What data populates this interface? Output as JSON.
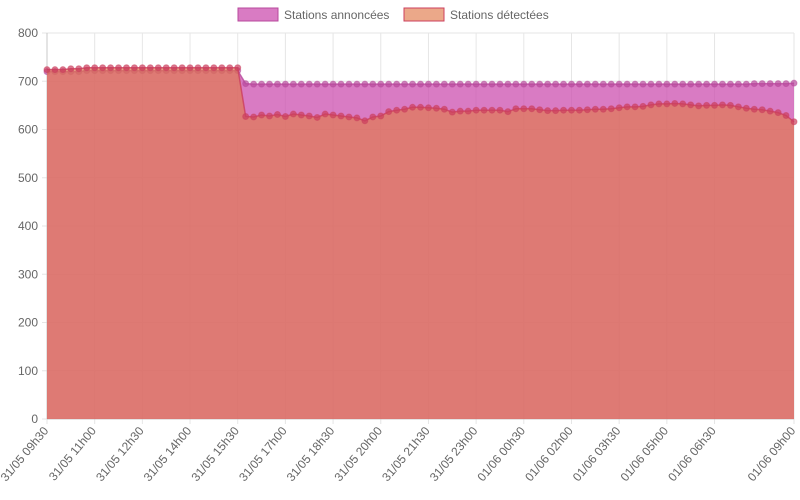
{
  "chart_data": {
    "type": "area",
    "legend_position": "top-center",
    "grid": true,
    "ylim": [
      0,
      800
    ],
    "y_ticks": [
      0,
      100,
      200,
      300,
      400,
      500,
      600,
      700,
      800
    ],
    "x_tick_labels": [
      "31/05 09h30",
      "31/05 11h00",
      "31/05 12h30",
      "31/05 14h00",
      "31/05 15h30",
      "31/05 17h00",
      "31/05 18h30",
      "31/05 20h00",
      "31/05 21h30",
      "31/05 23h00",
      "01/06 00h30",
      "01/06 02h00",
      "01/06 03h30",
      "01/06 05h00",
      "01/06 06h30",
      "01/06 09h00"
    ],
    "x_tick_indices": [
      0,
      6,
      12,
      18,
      24,
      30,
      36,
      42,
      48,
      54,
      60,
      66,
      72,
      78,
      84,
      94
    ],
    "series": [
      {
        "name": "Stations annoncées",
        "fill_color": "#cc4faf",
        "fill_opacity": 0.75,
        "point_color": "#b84a9c",
        "values": [
          720,
          720,
          720,
          720,
          720,
          722,
          722,
          722,
          722,
          722,
          722,
          722,
          722,
          722,
          722,
          722,
          722,
          722,
          722,
          722,
          722,
          722,
          722,
          722,
          722,
          695,
          694,
          694,
          694,
          694,
          694,
          694,
          694,
          694,
          694,
          694,
          694,
          694,
          694,
          694,
          694,
          694,
          694,
          694,
          694,
          694,
          694,
          694,
          694,
          694,
          694,
          694,
          694,
          694,
          694,
          694,
          694,
          694,
          694,
          694,
          694,
          694,
          694,
          694,
          694,
          694,
          694,
          694,
          694,
          694,
          694,
          694,
          694,
          694,
          694,
          694,
          694,
          694,
          694,
          694,
          694,
          694,
          694,
          694,
          694,
          694,
          694,
          694,
          694,
          695,
          695,
          695,
          695,
          695,
          696
        ]
      },
      {
        "name": "Stations détectées",
        "fill_color": "#e07a4a",
        "fill_opacity": 0.65,
        "point_color": "#cc3f5e",
        "values": [
          724,
          724,
          724,
          726,
          726,
          728,
          728,
          728,
          728,
          728,
          728,
          728,
          728,
          728,
          728,
          728,
          728,
          728,
          728,
          728,
          728,
          728,
          728,
          728,
          728,
          627,
          626,
          630,
          628,
          631,
          627,
          632,
          630,
          628,
          625,
          632,
          630,
          628,
          626,
          624,
          618,
          626,
          628,
          637,
          640,
          642,
          646,
          646,
          645,
          644,
          642,
          636,
          638,
          638,
          640,
          640,
          640,
          640,
          637,
          643,
          643,
          643,
          641,
          639,
          639,
          640,
          640,
          640,
          641,
          642,
          642,
          643,
          645,
          647,
          647,
          648,
          651,
          653,
          653,
          654,
          653,
          651,
          649,
          650,
          650,
          651,
          650,
          647,
          644,
          642,
          641,
          638,
          635,
          629,
          616
        ]
      }
    ]
  }
}
